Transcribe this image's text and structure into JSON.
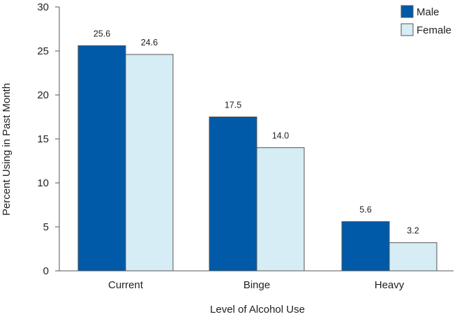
{
  "chart_data": {
    "type": "bar",
    "title": "",
    "xlabel": "Level of Alcohol Use",
    "ylabel": "Percent Using in Past Month",
    "ylim": [
      0,
      30
    ],
    "yticks": [
      0,
      5,
      10,
      15,
      20,
      25,
      30
    ],
    "categories": [
      "Current",
      "Binge",
      "Heavy"
    ],
    "series": [
      {
        "name": "Male",
        "values": [
          25.6,
          17.5,
          5.6
        ],
        "labels": [
          "25.6",
          "17.5",
          "5.6"
        ],
        "color": "#005aa7"
      },
      {
        "name": "Female",
        "values": [
          24.6,
          14.0,
          3.2
        ],
        "labels": [
          "24.6",
          "14.0",
          "3.2"
        ],
        "color": "#d6edf5"
      }
    ],
    "legend": "top-right",
    "grid": false,
    "axis_color": "#555555",
    "bar_stroke": "#555555"
  }
}
